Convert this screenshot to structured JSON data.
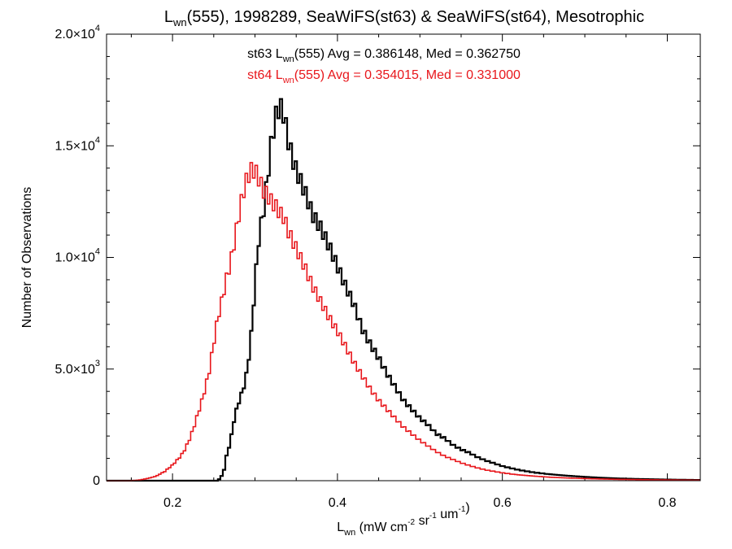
{
  "chart_data": {
    "type": "histogram",
    "title": {
      "base": "L",
      "sub": "wn",
      "rest": "(555), 1998289, SeaWiFS(st63) & SeaWiFS(st64), Mesotrophic"
    },
    "xlabel": {
      "base": "L",
      "sub": "wn",
      "parts": [
        {
          "text": " (mW cm",
          "sup": "-2"
        },
        {
          "text": " sr",
          "sup": "-1"
        },
        {
          "text": " um",
          "sup": "-1"
        },
        {
          "text": ")"
        }
      ]
    },
    "ylabel": "Number of Observations",
    "xlim": [
      0.12,
      0.84
    ],
    "ylim": [
      0,
      20000
    ],
    "xticks": [
      {
        "value": 0.2,
        "label": "0.2"
      },
      {
        "value": 0.4,
        "label": "0.4"
      },
      {
        "value": 0.6,
        "label": "0.6"
      },
      {
        "value": 0.8,
        "label": "0.8"
      }
    ],
    "yticks": [
      {
        "value": 0,
        "mant": "0",
        "exp": ""
      },
      {
        "value": 5000,
        "mant": "5.0×10",
        "exp": "3"
      },
      {
        "value": 10000,
        "mant": "1.0×10",
        "exp": "4"
      },
      {
        "value": 15000,
        "mant": "1.5×10",
        "exp": "4"
      },
      {
        "value": 20000,
        "mant": "2.0×10",
        "exp": "4"
      }
    ],
    "bin_width": 0.003,
    "series": [
      {
        "name": "st63",
        "color": "#000000",
        "stats": {
          "pre": "st63 L",
          "sub": "wn",
          "post": "(555) Avg = 0.386148, Med = 0.362750"
        },
        "shape_points": [
          [
            0.254,
            0
          ],
          [
            0.258,
            100
          ],
          [
            0.262,
            400
          ],
          [
            0.266,
            1200
          ],
          [
            0.27,
            1700
          ],
          [
            0.275,
            2800
          ],
          [
            0.28,
            3500
          ],
          [
            0.285,
            4000
          ],
          [
            0.29,
            4800
          ],
          [
            0.295,
            6300
          ],
          [
            0.3,
            8800
          ],
          [
            0.305,
            11000
          ],
          [
            0.31,
            12000
          ],
          [
            0.315,
            13500
          ],
          [
            0.32,
            15200
          ],
          [
            0.325,
            16300
          ],
          [
            0.33,
            16800
          ],
          [
            0.335,
            16400
          ],
          [
            0.34,
            15300
          ],
          [
            0.345,
            14500
          ],
          [
            0.35,
            13900
          ],
          [
            0.36,
            13000
          ],
          [
            0.37,
            11900
          ],
          [
            0.38,
            11300
          ],
          [
            0.39,
            10500
          ],
          [
            0.4,
            9600
          ],
          [
            0.41,
            8700
          ],
          [
            0.42,
            7900
          ],
          [
            0.43,
            6800
          ],
          [
            0.44,
            6100
          ],
          [
            0.45,
            5500
          ],
          [
            0.46,
            4800
          ],
          [
            0.47,
            4200
          ],
          [
            0.48,
            3600
          ],
          [
            0.49,
            3200
          ],
          [
            0.5,
            2800
          ],
          [
            0.51,
            2500
          ],
          [
            0.52,
            2100
          ],
          [
            0.53,
            1900
          ],
          [
            0.54,
            1600
          ],
          [
            0.55,
            1400
          ],
          [
            0.56,
            1250
          ],
          [
            0.57,
            1050
          ],
          [
            0.58,
            900
          ],
          [
            0.59,
            780
          ],
          [
            0.6,
            650
          ],
          [
            0.62,
            480
          ],
          [
            0.64,
            360
          ],
          [
            0.66,
            280
          ],
          [
            0.68,
            220
          ],
          [
            0.7,
            170
          ],
          [
            0.72,
            130
          ],
          [
            0.74,
            100
          ],
          [
            0.76,
            80
          ],
          [
            0.78,
            65
          ],
          [
            0.8,
            50
          ],
          [
            0.82,
            40
          ],
          [
            0.84,
            30
          ]
        ]
      },
      {
        "name": "st64",
        "color": "#e8161b",
        "stats": {
          "pre": "st64 L",
          "sub": "wn",
          "post": "(555) Avg = 0.354015, Med = 0.331000"
        },
        "shape_points": [
          [
            0.15,
            0
          ],
          [
            0.16,
            30
          ],
          [
            0.17,
            100
          ],
          [
            0.18,
            200
          ],
          [
            0.19,
            400
          ],
          [
            0.2,
            700
          ],
          [
            0.21,
            1100
          ],
          [
            0.215,
            1400
          ],
          [
            0.22,
            1800
          ],
          [
            0.225,
            2300
          ],
          [
            0.23,
            2900
          ],
          [
            0.235,
            3500
          ],
          [
            0.24,
            4200
          ],
          [
            0.245,
            5000
          ],
          [
            0.25,
            6200
          ],
          [
            0.255,
            7300
          ],
          [
            0.26,
            8100
          ],
          [
            0.265,
            9000
          ],
          [
            0.27,
            9700
          ],
          [
            0.275,
            10700
          ],
          [
            0.28,
            11800
          ],
          [
            0.285,
            12800
          ],
          [
            0.29,
            13500
          ],
          [
            0.295,
            13900
          ],
          [
            0.3,
            13900
          ],
          [
            0.305,
            13500
          ],
          [
            0.31,
            13000
          ],
          [
            0.315,
            12800
          ],
          [
            0.32,
            12500
          ],
          [
            0.325,
            12300
          ],
          [
            0.33,
            12000
          ],
          [
            0.335,
            11800
          ],
          [
            0.34,
            11200
          ],
          [
            0.35,
            10400
          ],
          [
            0.36,
            9600
          ],
          [
            0.37,
            8700
          ],
          [
            0.38,
            8000
          ],
          [
            0.39,
            7300
          ],
          [
            0.4,
            6700
          ],
          [
            0.41,
            6000
          ],
          [
            0.42,
            5300
          ],
          [
            0.43,
            4700
          ],
          [
            0.44,
            4100
          ],
          [
            0.45,
            3600
          ],
          [
            0.46,
            3200
          ],
          [
            0.47,
            2800
          ],
          [
            0.48,
            2400
          ],
          [
            0.49,
            2100
          ],
          [
            0.5,
            1800
          ],
          [
            0.51,
            1550
          ],
          [
            0.52,
            1300
          ],
          [
            0.53,
            1100
          ],
          [
            0.54,
            950
          ],
          [
            0.55,
            800
          ],
          [
            0.56,
            680
          ],
          [
            0.57,
            570
          ],
          [
            0.58,
            480
          ],
          [
            0.6,
            350
          ],
          [
            0.62,
            260
          ],
          [
            0.64,
            200
          ],
          [
            0.66,
            150
          ],
          [
            0.68,
            120
          ],
          [
            0.7,
            95
          ],
          [
            0.72,
            75
          ],
          [
            0.74,
            60
          ],
          [
            0.76,
            50
          ],
          [
            0.78,
            40
          ],
          [
            0.8,
            32
          ],
          [
            0.82,
            25
          ],
          [
            0.84,
            20
          ]
        ]
      }
    ]
  }
}
